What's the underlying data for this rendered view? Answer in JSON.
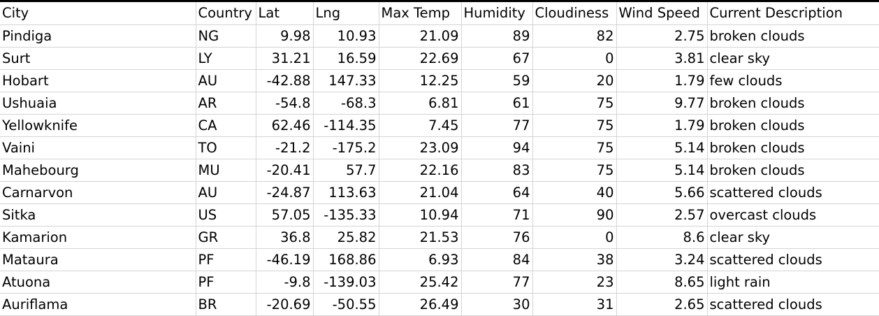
{
  "sheet": {
    "headers": [
      "City",
      "Country",
      "Lat",
      "Lng",
      "Max Temp",
      "Humidity",
      "Cloudiness",
      "Wind Speed",
      "Current Description"
    ],
    "rows": [
      [
        "Pindiga",
        "NG",
        "9.98",
        "10.93",
        "21.09",
        "89",
        "82",
        "2.75",
        "broken clouds"
      ],
      [
        "Surt",
        "LY",
        "31.21",
        "16.59",
        "22.69",
        "67",
        "0",
        "3.81",
        "clear sky"
      ],
      [
        "Hobart",
        "AU",
        "-42.88",
        "147.33",
        "12.25",
        "59",
        "20",
        "1.79",
        "few clouds"
      ],
      [
        "Ushuaia",
        "AR",
        "-54.8",
        "-68.3",
        "6.81",
        "61",
        "75",
        "9.77",
        "broken clouds"
      ],
      [
        "Yellowknife",
        "CA",
        "62.46",
        "-114.35",
        "7.45",
        "77",
        "75",
        "1.79",
        "broken clouds"
      ],
      [
        "Vaini",
        "TO",
        "-21.2",
        "-175.2",
        "23.09",
        "94",
        "75",
        "5.14",
        "broken clouds"
      ],
      [
        "Mahebourg",
        "MU",
        "-20.41",
        "57.7",
        "22.16",
        "83",
        "75",
        "5.14",
        "broken clouds"
      ],
      [
        "Carnarvon",
        "AU",
        "-24.87",
        "113.63",
        "21.04",
        "64",
        "40",
        "5.66",
        "scattered clouds"
      ],
      [
        "Sitka",
        "US",
        "57.05",
        "-135.33",
        "10.94",
        "71",
        "90",
        "2.57",
        "overcast clouds"
      ],
      [
        "Kamarion",
        "GR",
        "36.8",
        "25.82",
        "21.53",
        "76",
        "0",
        "8.6",
        "clear sky"
      ],
      [
        "Mataura",
        "PF",
        "-46.19",
        "168.86",
        "6.93",
        "84",
        "38",
        "3.24",
        "scattered clouds"
      ],
      [
        "Atuona",
        "PF",
        "-9.8",
        "-139.03",
        "25.42",
        "77",
        "23",
        "8.65",
        "light rain"
      ],
      [
        "Auriflama",
        "BR",
        "-20.69",
        "-50.55",
        "26.49",
        "30",
        "31",
        "2.65",
        "scattered clouds"
      ]
    ]
  }
}
